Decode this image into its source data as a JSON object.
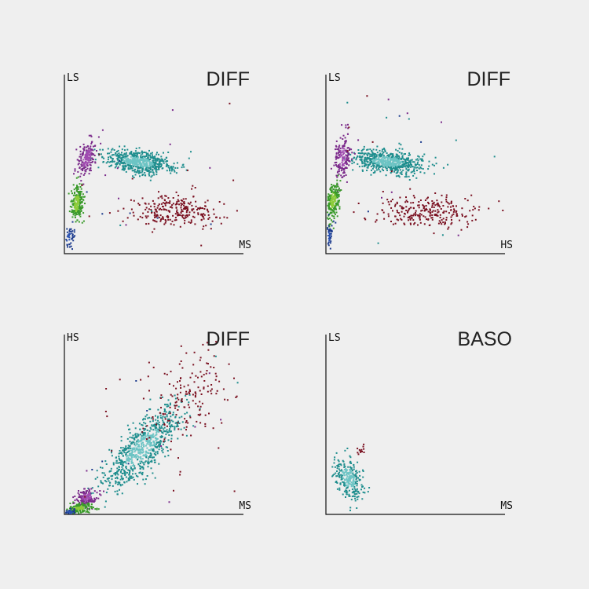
{
  "panels": [
    {
      "title": "DIFF",
      "y_label": "LS",
      "x_label": "MS"
    },
    {
      "title": "DIFF",
      "y_label": "LS",
      "x_label": "HS"
    },
    {
      "title": "DIFF",
      "y_label": "HS",
      "x_label": "MS"
    },
    {
      "title": "BASO",
      "y_label": "LS",
      "x_label": "MS"
    }
  ]
}
